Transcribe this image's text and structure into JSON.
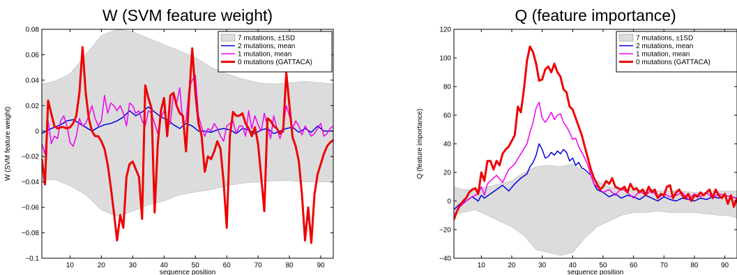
{
  "chart_data": [
    {
      "type": "line",
      "title": "W (SVM feature weight)",
      "xlabel": "sequence position",
      "ylabel": "W (SVM feature weight)",
      "xlim": [
        1,
        94
      ],
      "ylim": [
        -0.1,
        0.08
      ],
      "xticks": [
        10,
        20,
        30,
        40,
        50,
        60,
        70,
        80,
        90
      ],
      "yticks": [
        -0.1,
        -0.08,
        -0.06,
        -0.04,
        -0.02,
        0,
        0.02,
        0.04,
        0.06,
        0.08
      ],
      "ytick_labels": [
        "−0.1",
        "−0.08",
        "−0.06",
        "−0.04",
        "−0.02",
        "0",
        "0.02",
        "0.04",
        "0.06",
        "0.08"
      ],
      "legend_position": "top-right",
      "band": {
        "name": "7 mutations, ±1SD",
        "color": "#dcdcdc",
        "x": [
          1,
          5,
          10,
          15,
          20,
          25,
          30,
          35,
          40,
          45,
          50,
          55,
          60,
          65,
          70,
          75,
          80,
          85,
          90,
          94
        ],
        "upper": [
          0.037,
          0.039,
          0.045,
          0.06,
          0.075,
          0.08,
          0.078,
          0.073,
          0.068,
          0.063,
          0.058,
          0.05,
          0.045,
          0.041,
          0.038,
          0.037,
          0.038,
          0.039,
          0.038,
          0.037
        ],
        "lower": [
          -0.039,
          -0.038,
          -0.043,
          -0.05,
          -0.062,
          -0.067,
          -0.063,
          -0.058,
          -0.055,
          -0.05,
          -0.048,
          -0.046,
          -0.043,
          -0.041,
          -0.04,
          -0.039,
          -0.039,
          -0.04,
          -0.04,
          -0.04
        ]
      },
      "series": [
        {
          "name": "2 mutations, mean",
          "color": "#0000dd",
          "width": 1.5,
          "x": [
            1,
            3,
            5,
            7,
            9,
            11,
            13,
            15,
            17,
            19,
            21,
            23,
            25,
            27,
            29,
            31,
            33,
            35,
            37,
            39,
            41,
            43,
            45,
            47,
            49,
            51,
            53,
            55,
            57,
            59,
            61,
            63,
            65,
            67,
            69,
            71,
            73,
            75,
            77,
            79,
            81,
            83,
            85,
            87,
            89,
            91,
            94
          ],
          "y": [
            -0.002,
            0.001,
            0.003,
            0.005,
            0.008,
            0.009,
            0.006,
            0.003,
            0.0,
            0.003,
            0.005,
            0.006,
            0.008,
            0.011,
            0.016,
            0.012,
            0.015,
            0.019,
            0.015,
            0.011,
            0.009,
            0.005,
            0.002,
            0.006,
            0.004,
            0.0,
            0.0,
            -0.001,
            0.001,
            0.002,
            0.001,
            -0.002,
            0.002,
            0.001,
            -0.002,
            0.001,
            0.002,
            -0.002,
            0.0,
            0.002,
            0.003,
            -0.001,
            0.002,
            -0.001,
            0.004,
            0.0,
            0.0
          ]
        },
        {
          "name": "1 mutation, mean",
          "color": "#ee00ee",
          "width": 1.5,
          "x": [
            1,
            2,
            3,
            4,
            5,
            6,
            7,
            8,
            9,
            10,
            11,
            12,
            13,
            14,
            15,
            16,
            17,
            18,
            19,
            20,
            21,
            22,
            23,
            24,
            25,
            26,
            27,
            28,
            29,
            30,
            31,
            32,
            33,
            34,
            35,
            36,
            37,
            38,
            39,
            40,
            41,
            42,
            43,
            44,
            45,
            46,
            47,
            48,
            49,
            50,
            51,
            52,
            53,
            54,
            55,
            56,
            57,
            58,
            59,
            60,
            61,
            62,
            63,
            64,
            65,
            66,
            67,
            68,
            69,
            70,
            71,
            72,
            73,
            74,
            75,
            76,
            77,
            78,
            79,
            80,
            81,
            82,
            83,
            84,
            85,
            86,
            87,
            88,
            89,
            90,
            91,
            92,
            93,
            94
          ],
          "y": [
            -0.01,
            -0.018,
            0.008,
            -0.01,
            -0.004,
            -0.006,
            0.008,
            0.012,
            0.004,
            -0.009,
            -0.012,
            -0.004,
            0.01,
            0.004,
            0.006,
            0.012,
            0.02,
            0.01,
            0.004,
            0.008,
            0.028,
            0.014,
            0.022,
            0.02,
            0.016,
            0.02,
            0.014,
            0.004,
            0.022,
            0.02,
            0.014,
            0.016,
            0.008,
            0.004,
            0.016,
            0.014,
            0.006,
            -0.002,
            0.01,
            0.016,
            0.004,
            0.006,
            0.03,
            0.022,
            0.034,
            0.006,
            0.008,
            0.034,
            0.04,
            0.044,
            0.012,
            0.003,
            -0.004,
            0.002,
            0.0,
            0.006,
            0.002,
            -0.004,
            -0.008,
            0.004,
            0.006,
            0.008,
            -0.002,
            0.004,
            0.004,
            -0.004,
            0.016,
            0.002,
            0.012,
            0.005,
            0.0,
            0.014,
            0.004,
            -0.006,
            0.012,
            0.002,
            -0.006,
            0.004,
            0.02,
            0.012,
            0.002,
            0.008,
            0.004,
            -0.003,
            0.004,
            0.0,
            -0.004,
            -0.002,
            0.002,
            0.006,
            -0.004,
            -0.002,
            0.002,
            0.004
          ]
        },
        {
          "name": "0 mutations (GATTACA)",
          "color": "#ee0000",
          "width": 3,
          "x": [
            1,
            2,
            3,
            4,
            5,
            6,
            7,
            8,
            9,
            10,
            11,
            12,
            13,
            14,
            15,
            16,
            17,
            18,
            19,
            20,
            21,
            22,
            23,
            24,
            25,
            26,
            27,
            28,
            29,
            30,
            31,
            32,
            33,
            34,
            35,
            36,
            37,
            38,
            39,
            40,
            41,
            42,
            43,
            44,
            45,
            46,
            47,
            48,
            49,
            50,
            51,
            52,
            53,
            54,
            55,
            56,
            57,
            58,
            59,
            60,
            61,
            62,
            63,
            64,
            65,
            66,
            67,
            68,
            69,
            70,
            71,
            72,
            73,
            74,
            75,
            76,
            77,
            78,
            79,
            80,
            81,
            82,
            83,
            84,
            85,
            86,
            87,
            88,
            89,
            90,
            91,
            92,
            93,
            94
          ],
          "y": [
            -0.022,
            -0.042,
            0.024,
            0.014,
            0.004,
            0.002,
            0.003,
            0.003,
            0.002,
            0.003,
            0.006,
            0.012,
            0.03,
            0.066,
            0.03,
            0.01,
            0.0,
            -0.004,
            -0.004,
            -0.008,
            -0.014,
            -0.026,
            -0.044,
            -0.064,
            -0.086,
            -0.066,
            -0.076,
            -0.036,
            -0.026,
            -0.024,
            -0.03,
            -0.036,
            -0.069,
            0.036,
            0.026,
            0.018,
            -0.064,
            -0.01,
            0.016,
            0.026,
            -0.004,
            0.028,
            0.03,
            0.02,
            0.014,
            0.012,
            -0.016,
            0.026,
            0.065,
            0.03,
            0.006,
            -0.004,
            -0.032,
            -0.02,
            -0.022,
            -0.016,
            -0.008,
            -0.014,
            -0.04,
            -0.076,
            -0.004,
            0.015,
            0.012,
            0.012,
            0.014,
            0.006,
            0.002,
            -0.004,
            0.003,
            -0.01,
            -0.036,
            -0.063,
            0.01,
            0.008,
            0.004,
            0.002,
            -0.002,
            0.0,
            0.046,
            0.02,
            -0.005,
            -0.012,
            -0.024,
            -0.05,
            -0.086,
            -0.06,
            -0.088,
            -0.05,
            -0.034,
            -0.026,
            -0.018,
            -0.012,
            -0.009,
            -0.007
          ]
        }
      ]
    },
    {
      "type": "line",
      "title": "Q (feature importance)",
      "xlabel": "sequence position",
      "ylabel": "Q (feature importance)",
      "xlim": [
        1,
        94
      ],
      "ylim": [
        -40,
        120
      ],
      "xticks": [
        10,
        20,
        30,
        40,
        50,
        60,
        70,
        80,
        90
      ],
      "yticks": [
        -40,
        -20,
        0,
        20,
        40,
        60,
        80,
        100,
        120
      ],
      "ytick_labels": [
        "−40",
        "−20",
        "0",
        "20",
        "40",
        "60",
        "80",
        "100",
        "120"
      ],
      "legend_position": "top-right",
      "band": {
        "name": "7 mutations, ±1SD",
        "color": "#dcdcdc",
        "x": [
          1,
          4,
          8,
          12,
          16,
          20,
          24,
          28,
          32,
          36,
          40,
          44,
          48,
          52,
          56,
          60,
          64,
          68,
          72,
          76,
          80,
          84,
          88,
          91,
          94
        ],
        "upper": [
          10,
          8,
          8,
          10,
          12,
          14,
          20,
          24,
          25,
          24,
          26,
          20,
          14,
          10,
          8,
          8,
          8,
          7,
          7,
          7,
          6,
          6,
          7,
          7,
          7
        ],
        "lower": [
          -10,
          -8,
          -6,
          -10,
          -14,
          -18,
          -24,
          -34,
          -36,
          -38,
          -36,
          -26,
          -18,
          -14,
          -10,
          -8,
          -8,
          -7,
          -8,
          -8,
          -8,
          -9,
          -10,
          -10,
          -12
        ]
      },
      "series": [
        {
          "name": "2 mutations, mean",
          "color": "#0000dd",
          "width": 1.5,
          "x": [
            1,
            3,
            5,
            7,
            9,
            10,
            11,
            13,
            15,
            17,
            19,
            21,
            23,
            25,
            26,
            27,
            28,
            29,
            30,
            31,
            32,
            33,
            34,
            35,
            36,
            37,
            38,
            39,
            40,
            41,
            42,
            43,
            44,
            45,
            46,
            47,
            48,
            50,
            52,
            54,
            56,
            58,
            60,
            62,
            64,
            66,
            68,
            70,
            72,
            74,
            76,
            78,
            80,
            82,
            84,
            86,
            88,
            90,
            92,
            94
          ],
          "y": [
            -6,
            -2,
            0,
            3,
            0,
            4,
            2,
            5,
            8,
            11,
            7,
            12,
            16,
            19,
            24,
            27,
            32,
            40,
            36,
            30,
            31,
            34,
            32,
            35,
            33,
            36,
            34,
            28,
            30,
            25,
            27,
            23,
            22,
            20,
            18,
            12,
            8,
            6,
            3,
            5,
            2,
            4,
            3,
            1,
            4,
            2,
            0,
            3,
            1,
            0,
            2,
            1,
            0,
            2,
            1,
            3,
            2,
            4,
            3,
            2
          ]
        },
        {
          "name": "1 mutation, mean",
          "color": "#ee00ee",
          "width": 1.5,
          "x": [
            1,
            3,
            5,
            7,
            9,
            10,
            11,
            12,
            13,
            15,
            17,
            19,
            21,
            23,
            25,
            26,
            27,
            28,
            29,
            30,
            31,
            32,
            33,
            34,
            35,
            36,
            37,
            38,
            39,
            40,
            41,
            42,
            43,
            44,
            45,
            46,
            47,
            48,
            50,
            52,
            54,
            56,
            58,
            60,
            62,
            64,
            66,
            68,
            70,
            72,
            74,
            76,
            78,
            80,
            82,
            84,
            86,
            88,
            90,
            92,
            94
          ],
          "y": [
            -10,
            -4,
            0,
            3,
            5,
            10,
            4,
            12,
            14,
            18,
            13,
            22,
            26,
            33,
            40,
            48,
            55,
            65,
            69,
            58,
            55,
            58,
            62,
            57,
            60,
            61,
            55,
            52,
            48,
            43,
            44,
            38,
            34,
            30,
            25,
            18,
            12,
            10,
            6,
            8,
            4,
            9,
            6,
            2,
            7,
            4,
            8,
            2,
            5,
            3,
            4,
            6,
            1,
            5,
            3,
            6,
            2,
            5,
            4,
            3,
            2
          ]
        },
        {
          "name": "0 mutations (GATTACA)",
          "color": "#ee0000",
          "width": 3,
          "x": [
            1,
            2,
            3,
            4,
            5,
            6,
            7,
            8,
            9,
            10,
            11,
            12,
            13,
            14,
            15,
            16,
            17,
            18,
            19,
            20,
            21,
            22,
            23,
            24,
            25,
            26,
            27,
            28,
            29,
            30,
            31,
            32,
            33,
            34,
            35,
            36,
            37,
            38,
            39,
            40,
            41,
            42,
            43,
            44,
            45,
            46,
            47,
            48,
            49,
            50,
            51,
            52,
            53,
            54,
            55,
            56,
            57,
            58,
            59,
            60,
            61,
            62,
            63,
            64,
            65,
            66,
            67,
            68,
            69,
            70,
            71,
            72,
            73,
            74,
            75,
            76,
            77,
            78,
            79,
            80,
            81,
            82,
            83,
            84,
            85,
            86,
            87,
            88,
            89,
            90,
            91,
            92,
            93,
            94
          ],
          "y": [
            -13,
            -7,
            -3,
            0,
            2,
            6,
            8,
            9,
            5,
            20,
            14,
            28,
            28,
            22,
            28,
            25,
            33,
            36,
            38,
            42,
            46,
            66,
            62,
            78,
            98,
            108,
            104,
            96,
            84,
            85,
            92,
            94,
            90,
            96,
            90,
            87,
            78,
            76,
            66,
            64,
            58,
            52,
            46,
            38,
            30,
            22,
            16,
            12,
            8,
            10,
            14,
            12,
            16,
            10,
            9,
            8,
            10,
            6,
            12,
            8,
            9,
            6,
            8,
            4,
            10,
            6,
            8,
            2,
            5,
            4,
            10,
            11,
            2,
            6,
            8,
            4,
            2,
            5,
            0,
            4,
            3,
            6,
            4,
            6,
            8,
            2,
            8,
            4,
            2,
            5,
            -2,
            4,
            -4,
            2
          ]
        }
      ]
    }
  ]
}
